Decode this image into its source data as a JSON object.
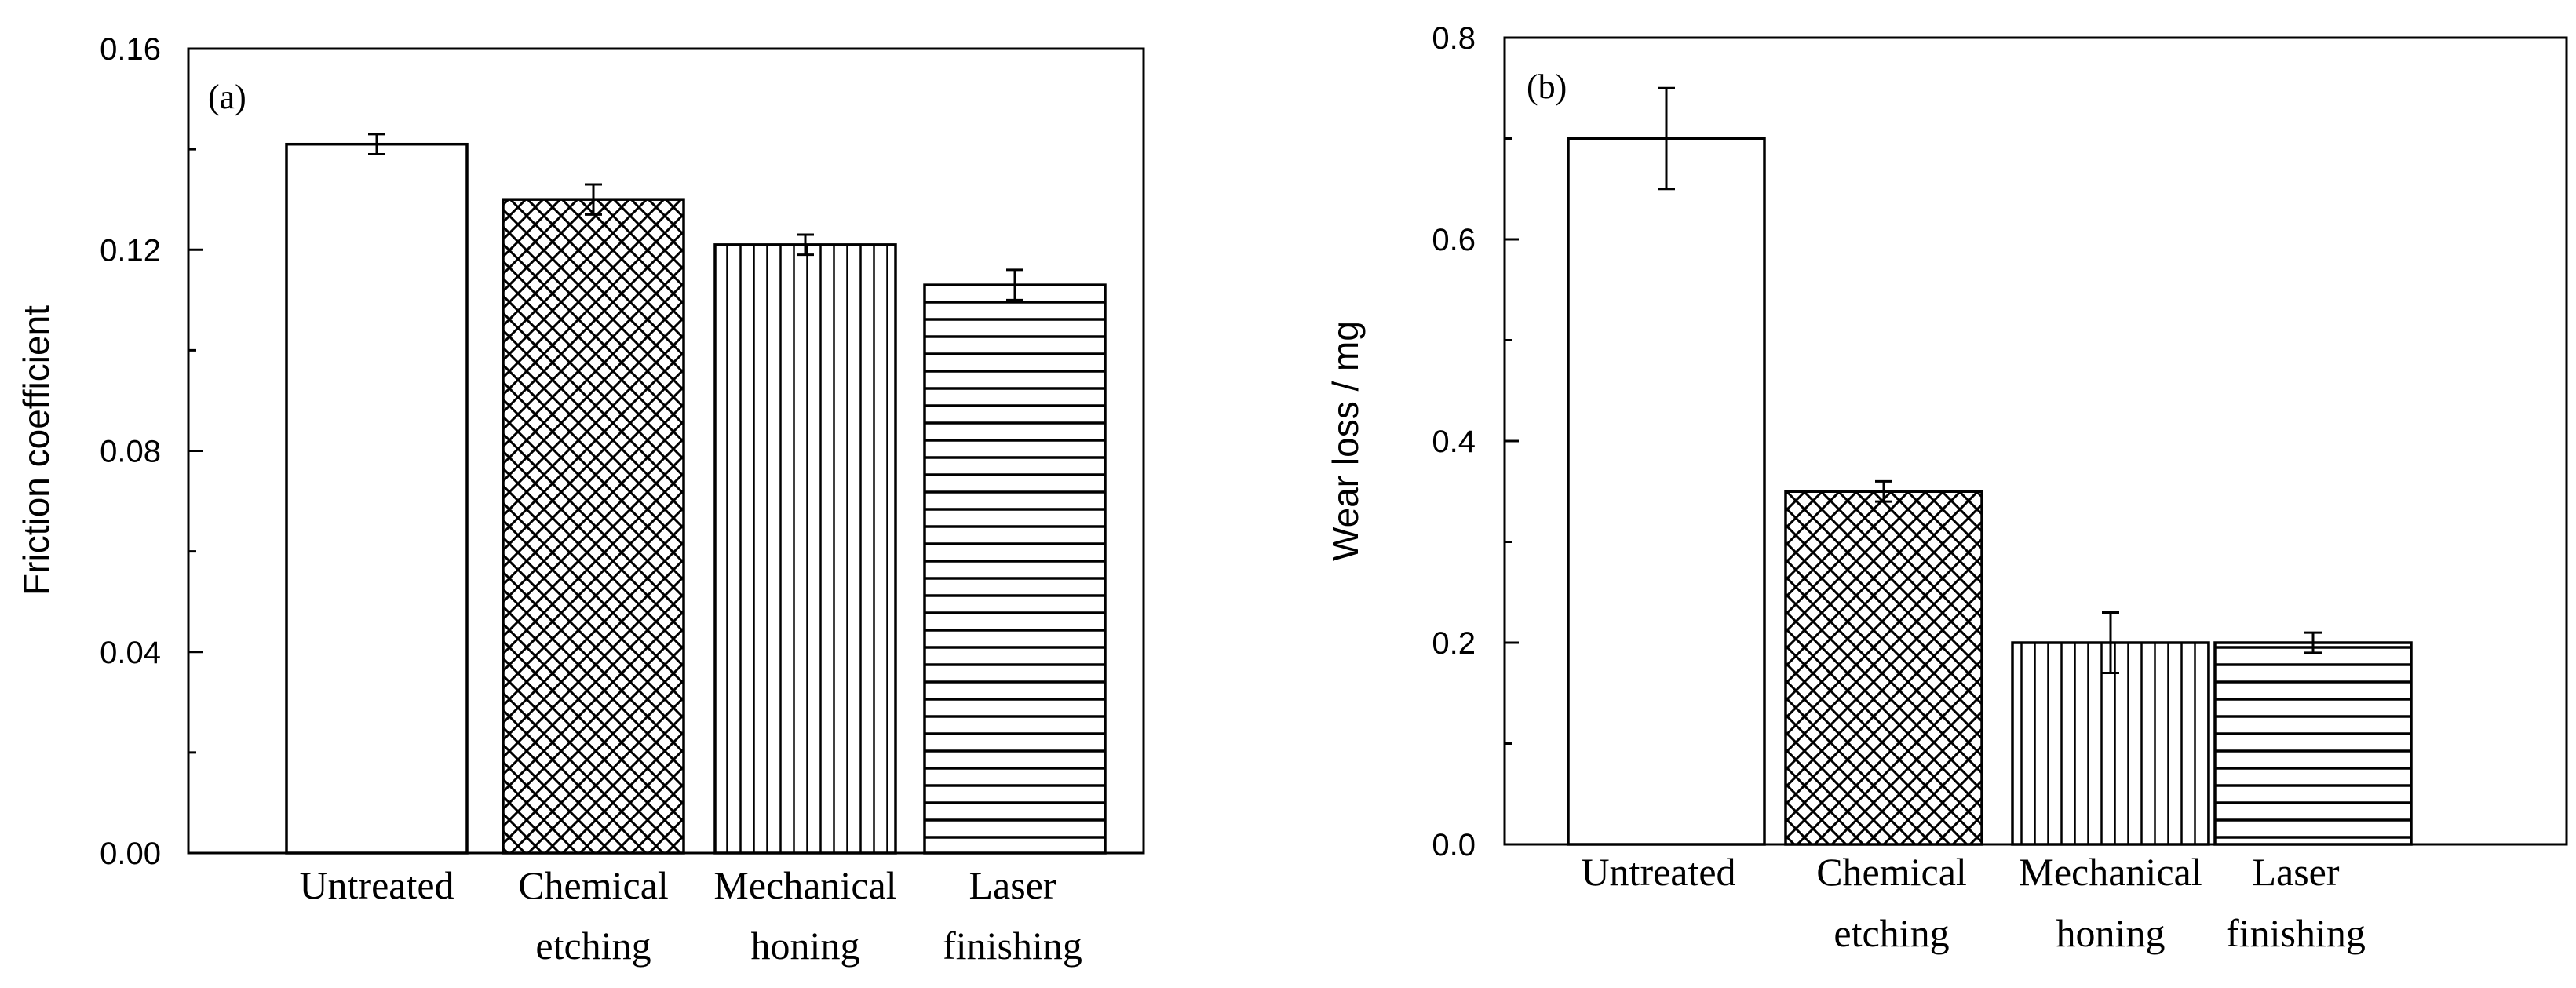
{
  "chart_data": [
    {
      "type": "bar",
      "panel_label": "(a)",
      "title": "",
      "xlabel": "",
      "ylabel": "Friction coefficient",
      "ylim": [
        0,
        0.16
      ],
      "yticks": [
        "0.00",
        "0.04",
        "0.08",
        "0.12",
        "0.16"
      ],
      "yticks_values": [
        0,
        0.04,
        0.08,
        0.12,
        0.16
      ],
      "categories": [
        [
          "Untreated"
        ],
        [
          "Chemical",
          "etching"
        ],
        [
          "Mechanical",
          "honing"
        ],
        [
          "Laser",
          "finishing"
        ]
      ],
      "values": [
        0.141,
        0.13,
        0.121,
        0.113
      ],
      "errors": [
        0.002,
        0.003,
        0.002,
        0.003
      ],
      "patterns": [
        "none",
        "crosshatch",
        "vertical",
        "horizontal"
      ]
    },
    {
      "type": "bar",
      "panel_label": "(b)",
      "title": "",
      "xlabel": "",
      "ylabel": "Wear loss / mg",
      "ylim": [
        0,
        0.8
      ],
      "yticks": [
        "0.0",
        "0.2",
        "0.4",
        "0.6",
        "0.8"
      ],
      "yticks_values": [
        0,
        0.2,
        0.4,
        0.6,
        0.8
      ],
      "categories": [
        [
          "Untreated"
        ],
        [
          "Chemical",
          "etching"
        ],
        [
          "Mechanical",
          "honing"
        ],
        [
          "Laser",
          "finishing"
        ]
      ],
      "values": [
        0.7,
        0.35,
        0.2,
        0.2
      ],
      "errors": [
        0.05,
        0.01,
        0.03,
        0.01
      ],
      "patterns": [
        "none",
        "crosshatch",
        "vertical",
        "horizontal"
      ]
    }
  ]
}
